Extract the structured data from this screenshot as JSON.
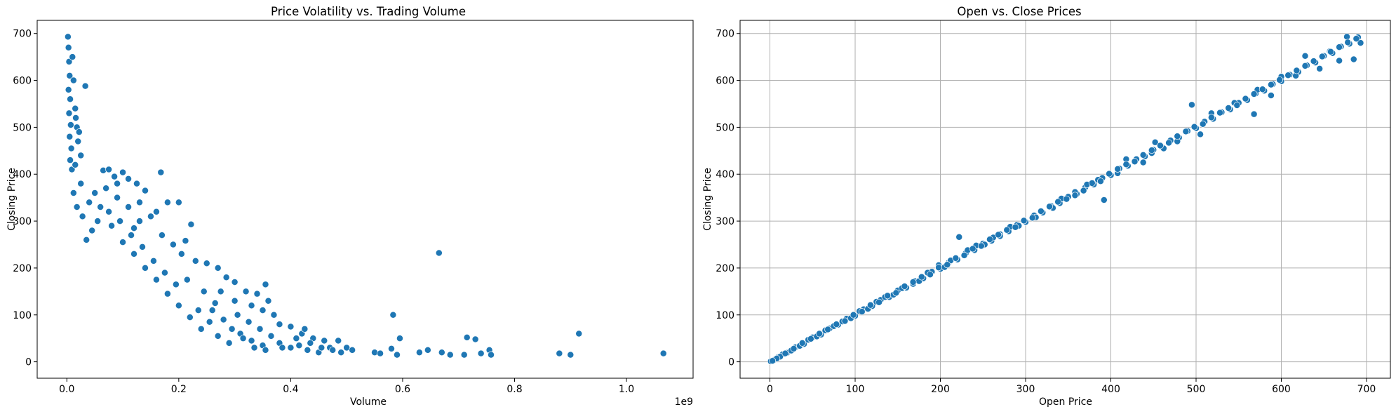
{
  "chart_data": [
    {
      "type": "scatter",
      "title": "Price Volatility vs. Trading Volume",
      "xlabel": "Volume",
      "ylabel": "Closing Price",
      "x_offset_label": "1e9",
      "xlim": [
        -0.053,
        1.119
      ],
      "ylim": [
        -35,
        728
      ],
      "xticks": [
        0.0,
        0.2,
        0.4,
        0.6,
        0.8,
        1.0
      ],
      "xtick_labels": [
        "0.0",
        "0.2",
        "0.4",
        "0.6",
        "0.8",
        "1.0"
      ],
      "yticks": [
        0,
        100,
        200,
        300,
        400,
        500,
        600,
        700
      ],
      "ytick_labels": [
        "0",
        "100",
        "200",
        "300",
        "400",
        "500",
        "600",
        "700"
      ],
      "grid": false,
      "color": "#1f77b4",
      "points": [
        [
          0.002,
          693
        ],
        [
          0.003,
          670
        ],
        [
          0.004,
          640
        ],
        [
          0.005,
          610
        ],
        [
          0.003,
          580
        ],
        [
          0.006,
          560
        ],
        [
          0.004,
          530
        ],
        [
          0.007,
          505
        ],
        [
          0.005,
          480
        ],
        [
          0.008,
          455
        ],
        [
          0.006,
          430
        ],
        [
          0.009,
          410
        ],
        [
          0.01,
          650
        ],
        [
          0.012,
          600
        ],
        [
          0.015,
          540
        ],
        [
          0.018,
          500
        ],
        [
          0.02,
          470
        ],
        [
          0.025,
          440
        ],
        [
          0.033,
          588
        ],
        [
          0.016,
          520
        ],
        [
          0.022,
          490
        ],
        [
          0.065,
          408
        ],
        [
          0.075,
          410
        ],
        [
          0.1,
          404
        ],
        [
          0.168,
          404
        ],
        [
          0.11,
          390
        ],
        [
          0.125,
          380
        ],
        [
          0.09,
          380
        ],
        [
          0.14,
          365
        ],
        [
          0.18,
          340
        ],
        [
          0.2,
          340
        ],
        [
          0.222,
          293
        ],
        [
          0.212,
          258
        ],
        [
          0.16,
          320
        ],
        [
          0.15,
          310
        ],
        [
          0.13,
          300
        ],
        [
          0.12,
          285
        ],
        [
          0.17,
          270
        ],
        [
          0.19,
          250
        ],
        [
          0.205,
          230
        ],
        [
          0.23,
          215
        ],
        [
          0.25,
          210
        ],
        [
          0.27,
          200
        ],
        [
          0.285,
          180
        ],
        [
          0.3,
          170
        ],
        [
          0.32,
          150
        ],
        [
          0.34,
          145
        ],
        [
          0.355,
          165
        ],
        [
          0.36,
          130
        ],
        [
          0.3,
          130
        ],
        [
          0.275,
          150
        ],
        [
          0.33,
          120
        ],
        [
          0.35,
          110
        ],
        [
          0.37,
          100
        ],
        [
          0.38,
          80
        ],
        [
          0.4,
          75
        ],
        [
          0.42,
          60
        ],
        [
          0.425,
          70
        ],
        [
          0.41,
          50
        ],
        [
          0.44,
          50
        ],
        [
          0.46,
          45
        ],
        [
          0.485,
          45
        ],
        [
          0.5,
          30
        ],
        [
          0.51,
          25
        ],
        [
          0.55,
          20
        ],
        [
          0.56,
          18
        ],
        [
          0.58,
          28
        ],
        [
          0.583,
          100
        ],
        [
          0.595,
          50
        ],
        [
          0.59,
          15
        ],
        [
          0.63,
          20
        ],
        [
          0.645,
          25
        ],
        [
          0.665,
          232
        ],
        [
          0.67,
          20
        ],
        [
          0.685,
          15
        ],
        [
          0.71,
          15
        ],
        [
          0.715,
          52
        ],
        [
          0.73,
          48
        ],
        [
          0.74,
          18
        ],
        [
          0.755,
          25
        ],
        [
          0.758,
          15
        ],
        [
          0.88,
          18
        ],
        [
          0.9,
          15
        ],
        [
          0.915,
          60
        ],
        [
          1.066,
          18
        ],
        [
          0.26,
          110
        ],
        [
          0.28,
          90
        ],
        [
          0.31,
          60
        ],
        [
          0.33,
          45
        ],
        [
          0.35,
          35
        ],
        [
          0.38,
          40
        ],
        [
          0.4,
          30
        ],
        [
          0.43,
          25
        ],
        [
          0.45,
          20
        ],
        [
          0.47,
          30
        ],
        [
          0.49,
          20
        ],
        [
          0.29,
          40
        ],
        [
          0.27,
          55
        ],
        [
          0.24,
          70
        ],
        [
          0.22,
          95
        ],
        [
          0.2,
          120
        ],
        [
          0.18,
          145
        ],
        [
          0.16,
          175
        ],
        [
          0.14,
          200
        ],
        [
          0.12,
          230
        ],
        [
          0.1,
          255
        ],
        [
          0.08,
          290
        ],
        [
          0.06,
          330
        ],
        [
          0.05,
          360
        ],
        [
          0.04,
          340
        ],
        [
          0.07,
          370
        ],
        [
          0.09,
          350
        ],
        [
          0.11,
          330
        ],
        [
          0.13,
          340
        ],
        [
          0.085,
          395
        ],
        [
          0.215,
          175
        ],
        [
          0.245,
          150
        ],
        [
          0.265,
          125
        ],
        [
          0.305,
          100
        ],
        [
          0.325,
          85
        ],
        [
          0.345,
          70
        ],
        [
          0.365,
          55
        ],
        [
          0.385,
          30
        ],
        [
          0.415,
          35
        ],
        [
          0.435,
          40
        ],
        [
          0.455,
          30
        ],
        [
          0.475,
          25
        ],
        [
          0.235,
          110
        ],
        [
          0.255,
          85
        ],
        [
          0.295,
          70
        ],
        [
          0.315,
          50
        ],
        [
          0.335,
          30
        ],
        [
          0.355,
          25
        ],
        [
          0.195,
          165
        ],
        [
          0.175,
          190
        ],
        [
          0.155,
          215
        ],
        [
          0.135,
          245
        ],
        [
          0.115,
          270
        ],
        [
          0.095,
          300
        ],
        [
          0.075,
          320
        ],
        [
          0.055,
          300
        ],
        [
          0.045,
          280
        ],
        [
          0.035,
          260
        ],
        [
          0.025,
          380
        ],
        [
          0.015,
          420
        ],
        [
          0.012,
          360
        ],
        [
          0.018,
          330
        ],
        [
          0.028,
          310
        ]
      ]
    },
    {
      "type": "scatter",
      "title": "Open vs. Close Prices",
      "xlabel": "Open Price",
      "ylabel": "Closing Price",
      "xlim": [
        -35,
        728
      ],
      "ylim": [
        -35,
        728
      ],
      "xticks": [
        0,
        100,
        200,
        300,
        400,
        500,
        600,
        700
      ],
      "xtick_labels": [
        "0",
        "100",
        "200",
        "300",
        "400",
        "500",
        "600",
        "700"
      ],
      "yticks": [
        0,
        100,
        200,
        300,
        400,
        500,
        600,
        700
      ],
      "ytick_labels": [
        "0",
        "100",
        "200",
        "300",
        "400",
        "500",
        "600",
        "700"
      ],
      "grid": true,
      "color": "#1f77b4",
      "points": [
        [
          1,
          1
        ],
        [
          5,
          4
        ],
        [
          10,
          10
        ],
        [
          15,
          16
        ],
        [
          20,
          19
        ],
        [
          30,
          31
        ],
        [
          40,
          38
        ],
        [
          50,
          52
        ],
        [
          60,
          58
        ],
        [
          70,
          71
        ],
        [
          80,
          79
        ],
        [
          90,
          92
        ],
        [
          100,
          98
        ],
        [
          110,
          112
        ],
        [
          120,
          119
        ],
        [
          130,
          132
        ],
        [
          140,
          138
        ],
        [
          150,
          152
        ],
        [
          160,
          158
        ],
        [
          170,
          172
        ],
        [
          180,
          178
        ],
        [
          190,
          192
        ],
        [
          200,
          198
        ],
        [
          210,
          212
        ],
        [
          220,
          218
        ],
        [
          230,
          232
        ],
        [
          240,
          238
        ],
        [
          250,
          252
        ],
        [
          260,
          258
        ],
        [
          270,
          272
        ],
        [
          280,
          278
        ],
        [
          290,
          292
        ],
        [
          300,
          298
        ],
        [
          310,
          312
        ],
        [
          320,
          318
        ],
        [
          330,
          332
        ],
        [
          340,
          338
        ],
        [
          350,
          352
        ],
        [
          360,
          358
        ],
        [
          370,
          372
        ],
        [
          380,
          378
        ],
        [
          390,
          392
        ],
        [
          400,
          398
        ],
        [
          410,
          412
        ],
        [
          420,
          418
        ],
        [
          430,
          432
        ],
        [
          440,
          438
        ],
        [
          450,
          452
        ],
        [
          460,
          458
        ],
        [
          470,
          472
        ],
        [
          480,
          478
        ],
        [
          490,
          492
        ],
        [
          500,
          498
        ],
        [
          510,
          512
        ],
        [
          520,
          518
        ],
        [
          530,
          532
        ],
        [
          540,
          538
        ],
        [
          550,
          552
        ],
        [
          560,
          558
        ],
        [
          570,
          572
        ],
        [
          580,
          578
        ],
        [
          590,
          592
        ],
        [
          600,
          598
        ],
        [
          610,
          612
        ],
        [
          620,
          618
        ],
        [
          630,
          632
        ],
        [
          640,
          638
        ],
        [
          650,
          652
        ],
        [
          660,
          658
        ],
        [
          670,
          672
        ],
        [
          680,
          678
        ],
        [
          690,
          692
        ],
        [
          693,
          680
        ],
        [
          677,
          693
        ],
        [
          685,
          645
        ],
        [
          668,
          642
        ],
        [
          657,
          662
        ],
        [
          617,
          610
        ],
        [
          645,
          625
        ],
        [
          628,
          652
        ],
        [
          600,
          608
        ],
        [
          588,
          568
        ],
        [
          572,
          580
        ],
        [
          568,
          528
        ],
        [
          545,
          552
        ],
        [
          518,
          530
        ],
        [
          495,
          548
        ],
        [
          505,
          485
        ],
        [
          478,
          470
        ],
        [
          462,
          455
        ],
        [
          448,
          445
        ],
        [
          452,
          468
        ],
        [
          438,
          425
        ],
        [
          418,
          432
        ],
        [
          408,
          402
        ],
        [
          392,
          345
        ],
        [
          385,
          388
        ],
        [
          372,
          378
        ],
        [
          358,
          362
        ],
        [
          342,
          348
        ],
        [
          332,
          328
        ],
        [
          320,
          318
        ],
        [
          312,
          308
        ],
        [
          300,
          298
        ],
        [
          292,
          290
        ],
        [
          282,
          288
        ],
        [
          270,
          268
        ],
        [
          262,
          265
        ],
        [
          252,
          250
        ],
        [
          242,
          248
        ],
        [
          232,
          238
        ],
        [
          222,
          266
        ],
        [
          212,
          216
        ],
        [
          205,
          202
        ],
        [
          198,
          206
        ],
        [
          185,
          190
        ],
        [
          175,
          172
        ],
        [
          168,
          166
        ],
        [
          155,
          157
        ],
        [
          145,
          143
        ],
        [
          135,
          138
        ],
        [
          125,
          128
        ],
        [
          115,
          113
        ],
        [
          105,
          108
        ],
        [
          95,
          93
        ],
        [
          85,
          86
        ],
        [
          75,
          76
        ],
        [
          65,
          67
        ],
        [
          55,
          54
        ],
        [
          45,
          47
        ],
        [
          35,
          34
        ],
        [
          25,
          24
        ],
        [
          12,
          11
        ],
        [
          8,
          7
        ],
        [
          3,
          2
        ],
        [
          18,
          18
        ],
        [
          28,
          28
        ],
        [
          38,
          40
        ],
        [
          48,
          49
        ],
        [
          58,
          60
        ],
        [
          68,
          69
        ],
        [
          78,
          80
        ],
        [
          88,
          87
        ],
        [
          98,
          100
        ],
        [
          108,
          107
        ],
        [
          118,
          121
        ],
        [
          128,
          127
        ],
        [
          138,
          141
        ],
        [
          148,
          147
        ],
        [
          158,
          161
        ],
        [
          168,
          170
        ],
        [
          178,
          181
        ],
        [
          188,
          186
        ],
        [
          198,
          201
        ],
        [
          208,
          207
        ],
        [
          218,
          221
        ],
        [
          228,
          227
        ],
        [
          238,
          241
        ],
        [
          248,
          247
        ],
        [
          258,
          261
        ],
        [
          268,
          271
        ],
        [
          278,
          281
        ],
        [
          288,
          287
        ],
        [
          298,
          301
        ],
        [
          308,
          307
        ],
        [
          318,
          321
        ],
        [
          328,
          331
        ],
        [
          338,
          341
        ],
        [
          348,
          347
        ],
        [
          358,
          355
        ],
        [
          368,
          365
        ],
        [
          378,
          381
        ],
        [
          388,
          385
        ],
        [
          398,
          401
        ],
        [
          408,
          411
        ],
        [
          418,
          421
        ],
        [
          428,
          427
        ],
        [
          438,
          441
        ],
        [
          448,
          451
        ],
        [
          458,
          461
        ],
        [
          468,
          467
        ],
        [
          478,
          481
        ],
        [
          488,
          491
        ],
        [
          498,
          501
        ],
        [
          508,
          507
        ],
        [
          518,
          521
        ],
        [
          528,
          531
        ],
        [
          538,
          541
        ],
        [
          548,
          547
        ],
        [
          558,
          561
        ],
        [
          568,
          571
        ],
        [
          578,
          581
        ],
        [
          588,
          591
        ],
        [
          598,
          601
        ],
        [
          608,
          611
        ],
        [
          618,
          621
        ],
        [
          628,
          631
        ],
        [
          638,
          641
        ],
        [
          648,
          651
        ],
        [
          658,
          661
        ],
        [
          668,
          671
        ],
        [
          678,
          681
        ],
        [
          688,
          689
        ]
      ]
    }
  ]
}
